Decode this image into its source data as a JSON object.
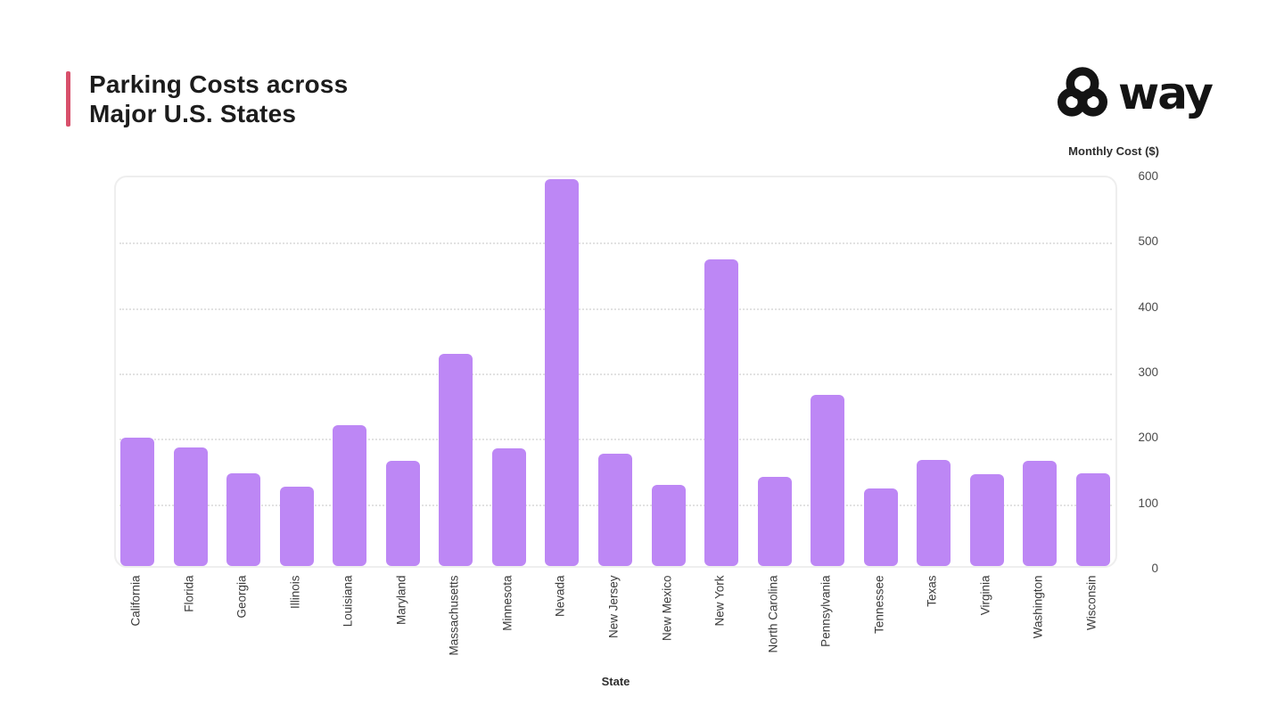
{
  "header": {
    "title_line1": "Parking Costs across",
    "title_line2": "Major U.S. States",
    "accent_color": "#d8506b",
    "brand_wordmark": "way"
  },
  "chart_data": {
    "type": "bar",
    "title": "Parking Costs across Major U.S. States",
    "xlabel": "State",
    "ylabel": "Monthly Cost ($)",
    "ylim": [
      0,
      600
    ],
    "yticks": [
      0,
      100,
      200,
      300,
      400,
      500,
      600
    ],
    "grid": true,
    "legend": false,
    "bar_color": "#bd87f5",
    "categories": [
      "California",
      "Florida",
      "Georgia",
      "Illinois",
      "Louisiana",
      "Maryland",
      "Massachusetts",
      "Minnesota",
      "Nevada",
      "New Jersey",
      "New Mexico",
      "New York",
      "North Carolina",
      "Pennsylvania",
      "Tennessee",
      "Texas",
      "Virginia",
      "Washington",
      "Wisconsin"
    ],
    "values": [
      197,
      181,
      142,
      121,
      215,
      161,
      325,
      180,
      592,
      172,
      124,
      469,
      136,
      262,
      119,
      162,
      141,
      161,
      142
    ]
  }
}
